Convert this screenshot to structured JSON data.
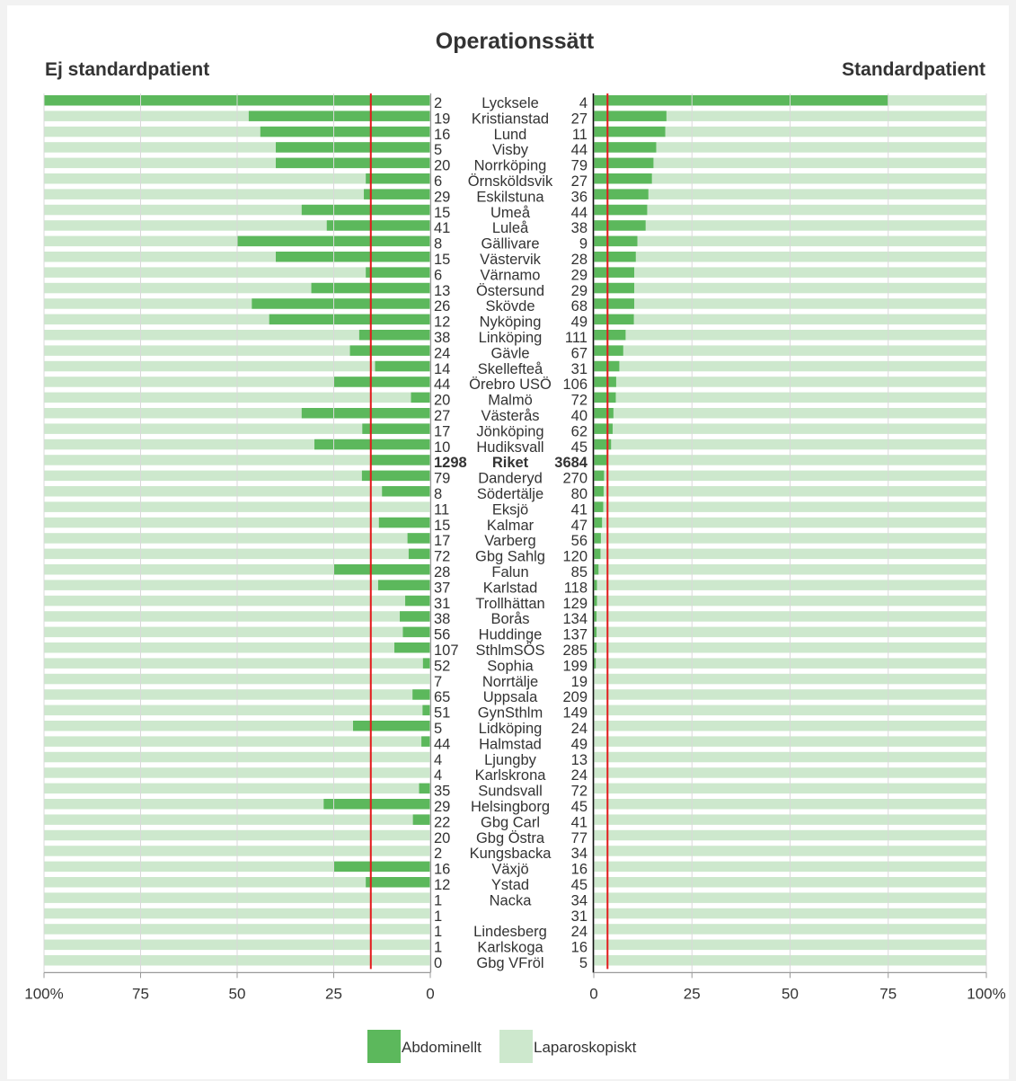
{
  "chart_data": {
    "type": "bar",
    "title": "Operationssätt",
    "left_panel": {
      "title": "Ej standardpatient",
      "reference_value": 15.4
    },
    "right_panel": {
      "title": "Standardpatient",
      "reference_value": 3.5
    },
    "xlim": [
      0,
      100
    ],
    "left_ticks": [
      "100%",
      "75",
      "50",
      "25",
      "0"
    ],
    "right_ticks": [
      "0",
      "25",
      "50",
      "75",
      "100%"
    ],
    "legend": [
      {
        "label": "Abdominellt",
        "color": "#5cb85c"
      },
      {
        "label": "Laparoskopiskt",
        "color": "#cde8cd"
      }
    ],
    "colors": {
      "abdominal": "#5cb85c",
      "laparoscopic": "#cde8cd",
      "reference_line": "#e31a1c",
      "axis": "#999999"
    },
    "rows": [
      {
        "name": "Lycksele",
        "left_n": "2",
        "right_n": "4",
        "left_abd_pct": 100,
        "right_abd_pct": 75
      },
      {
        "name": "Kristianstad",
        "left_n": "19",
        "right_n": "27",
        "left_abd_pct": 47,
        "right_abd_pct": 18.5
      },
      {
        "name": "Lund",
        "left_n": "16",
        "right_n": "11",
        "left_abd_pct": 44,
        "right_abd_pct": 18.2
      },
      {
        "name": "Visby",
        "left_n": "5",
        "right_n": "44",
        "left_abd_pct": 40,
        "right_abd_pct": 15.9
      },
      {
        "name": "Norrköping",
        "left_n": "20",
        "right_n": "79",
        "left_abd_pct": 40,
        "right_abd_pct": 15.2
      },
      {
        "name": "Örnsköldsvik",
        "left_n": "6",
        "right_n": "27",
        "left_abd_pct": 16.7,
        "right_abd_pct": 14.8
      },
      {
        "name": "Eskilstuna",
        "left_n": "29",
        "right_n": "36",
        "left_abd_pct": 17.2,
        "right_abd_pct": 13.9
      },
      {
        "name": "Umeå",
        "left_n": "15",
        "right_n": "44",
        "left_abd_pct": 33.3,
        "right_abd_pct": 13.6
      },
      {
        "name": "Luleå",
        "left_n": "41",
        "right_n": "38",
        "left_abd_pct": 26.8,
        "right_abd_pct": 13.2
      },
      {
        "name": "Gällivare",
        "left_n": "8",
        "right_n": "9",
        "left_abd_pct": 50,
        "right_abd_pct": 11.1
      },
      {
        "name": "Västervik",
        "left_n": "15",
        "right_n": "28",
        "left_abd_pct": 40,
        "right_abd_pct": 10.7
      },
      {
        "name": "Värnamo",
        "left_n": "6",
        "right_n": "29",
        "left_abd_pct": 16.7,
        "right_abd_pct": 10.3
      },
      {
        "name": "Östersund",
        "left_n": "13",
        "right_n": "29",
        "left_abd_pct": 30.8,
        "right_abd_pct": 10.3
      },
      {
        "name": "Skövde",
        "left_n": "26",
        "right_n": "68",
        "left_abd_pct": 46.2,
        "right_abd_pct": 10.3
      },
      {
        "name": "Nyköping",
        "left_n": "12",
        "right_n": "49",
        "left_abd_pct": 41.7,
        "right_abd_pct": 10.2
      },
      {
        "name": "Linköping",
        "left_n": "38",
        "right_n": "111",
        "left_abd_pct": 18.4,
        "right_abd_pct": 8.1
      },
      {
        "name": "Gävle",
        "left_n": "24",
        "right_n": "67",
        "left_abd_pct": 20.8,
        "right_abd_pct": 7.5
      },
      {
        "name": "Skellefteå",
        "left_n": "14",
        "right_n": "31",
        "left_abd_pct": 14.3,
        "right_abd_pct": 6.5
      },
      {
        "name": "Örebro USÖ",
        "left_n": "44",
        "right_n": "106",
        "left_abd_pct": 25,
        "right_abd_pct": 5.7
      },
      {
        "name": "Malmö",
        "left_n": "20",
        "right_n": "72",
        "left_abd_pct": 5,
        "right_abd_pct": 5.6
      },
      {
        "name": "Västerås",
        "left_n": "27",
        "right_n": "40",
        "left_abd_pct": 33.3,
        "right_abd_pct": 5
      },
      {
        "name": "Jönköping",
        "left_n": "17",
        "right_n": "62",
        "left_abd_pct": 17.6,
        "right_abd_pct": 4.8
      },
      {
        "name": "Hudiksvall",
        "left_n": "10",
        "right_n": "45",
        "left_abd_pct": 30,
        "right_abd_pct": 4.4
      },
      {
        "name": "Riket",
        "left_n": "1298",
        "right_n": "3684",
        "left_abd_pct": 15.4,
        "right_abd_pct": 3.5,
        "bold": true
      },
      {
        "name": "Danderyd",
        "left_n": "79",
        "right_n": "270",
        "left_abd_pct": 17.7,
        "right_abd_pct": 2.6
      },
      {
        "name": "Södertälje",
        "left_n": "8",
        "right_n": "80",
        "left_abd_pct": 12.5,
        "right_abd_pct": 2.5
      },
      {
        "name": "Eksjö",
        "left_n": "11",
        "right_n": "41",
        "left_abd_pct": 0,
        "right_abd_pct": 2.4
      },
      {
        "name": "Kalmar",
        "left_n": "15",
        "right_n": "47",
        "left_abd_pct": 13.3,
        "right_abd_pct": 2.1
      },
      {
        "name": "Varberg",
        "left_n": "17",
        "right_n": "56",
        "left_abd_pct": 5.9,
        "right_abd_pct": 1.8
      },
      {
        "name": "Gbg Sahlg",
        "left_n": "72",
        "right_n": "120",
        "left_abd_pct": 5.6,
        "right_abd_pct": 1.7
      },
      {
        "name": "Falun",
        "left_n": "28",
        "right_n": "85",
        "left_abd_pct": 25,
        "right_abd_pct": 1.2
      },
      {
        "name": "Karlstad",
        "left_n": "37",
        "right_n": "118",
        "left_abd_pct": 13.5,
        "right_abd_pct": 0.8
      },
      {
        "name": "Trollhättan",
        "left_n": "31",
        "right_n": "129",
        "left_abd_pct": 6.5,
        "right_abd_pct": 0.8
      },
      {
        "name": "Borås",
        "left_n": "38",
        "right_n": "134",
        "left_abd_pct": 7.9,
        "right_abd_pct": 0.7
      },
      {
        "name": "Huddinge",
        "left_n": "56",
        "right_n": "137",
        "left_abd_pct": 7.1,
        "right_abd_pct": 0.7
      },
      {
        "name": "SthlmSÖS",
        "left_n": "107",
        "right_n": "285",
        "left_abd_pct": 9.3,
        "right_abd_pct": 0.7
      },
      {
        "name": "Sophia",
        "left_n": "52",
        "right_n": "199",
        "left_abd_pct": 1.9,
        "right_abd_pct": 0.5
      },
      {
        "name": "Norrtälje",
        "left_n": "7",
        "right_n": "19",
        "left_abd_pct": 0,
        "right_abd_pct": 0
      },
      {
        "name": "Uppsala",
        "left_n": "65",
        "right_n": "209",
        "left_abd_pct": 4.6,
        "right_abd_pct": 0
      },
      {
        "name": "GynSthlm",
        "left_n": "51",
        "right_n": "149",
        "left_abd_pct": 2,
        "right_abd_pct": 0
      },
      {
        "name": "Lidköping",
        "left_n": "5",
        "right_n": "24",
        "left_abd_pct": 20,
        "right_abd_pct": 0
      },
      {
        "name": "Halmstad",
        "left_n": "44",
        "right_n": "49",
        "left_abd_pct": 2.3,
        "right_abd_pct": 0
      },
      {
        "name": "Ljungby",
        "left_n": "4",
        "right_n": "13",
        "left_abd_pct": 0,
        "right_abd_pct": 0
      },
      {
        "name": "Karlskrona",
        "left_n": "4",
        "right_n": "24",
        "left_abd_pct": 0,
        "right_abd_pct": 0
      },
      {
        "name": "Sundsvall",
        "left_n": "35",
        "right_n": "72",
        "left_abd_pct": 2.9,
        "right_abd_pct": 0
      },
      {
        "name": "Helsingborg",
        "left_n": "29",
        "right_n": "45",
        "left_abd_pct": 27.6,
        "right_abd_pct": 0
      },
      {
        "name": "Gbg Carl",
        "left_n": "22",
        "right_n": "41",
        "left_abd_pct": 4.5,
        "right_abd_pct": 0
      },
      {
        "name": "Gbg Östra",
        "left_n": "20",
        "right_n": "77",
        "left_abd_pct": 0,
        "right_abd_pct": 0
      },
      {
        "name": "Kungsbacka",
        "left_n": "2",
        "right_n": "34",
        "left_abd_pct": 0,
        "right_abd_pct": 0
      },
      {
        "name": "Växjö",
        "left_n": "16",
        "right_n": "16",
        "left_abd_pct": 25,
        "right_abd_pct": 0
      },
      {
        "name": "Ystad",
        "left_n": "12",
        "right_n": "45",
        "left_abd_pct": 16.7,
        "right_abd_pct": 0
      },
      {
        "name": "Nacka",
        "left_n": "1",
        "right_n": "34",
        "left_abd_pct": 0,
        "right_abd_pct": 0
      },
      {
        "name": "",
        "left_n": "1",
        "right_n": "31",
        "left_abd_pct": 0,
        "right_abd_pct": 0
      },
      {
        "name": "Lindesberg",
        "left_n": "1",
        "right_n": "24",
        "left_abd_pct": 0,
        "right_abd_pct": 0
      },
      {
        "name": "Karlskoga",
        "left_n": "1",
        "right_n": "16",
        "left_abd_pct": 0,
        "right_abd_pct": 0
      },
      {
        "name": "Gbg VFröl",
        "left_n": "0",
        "right_n": "5",
        "left_abd_pct": 0,
        "right_abd_pct": 0
      }
    ]
  }
}
